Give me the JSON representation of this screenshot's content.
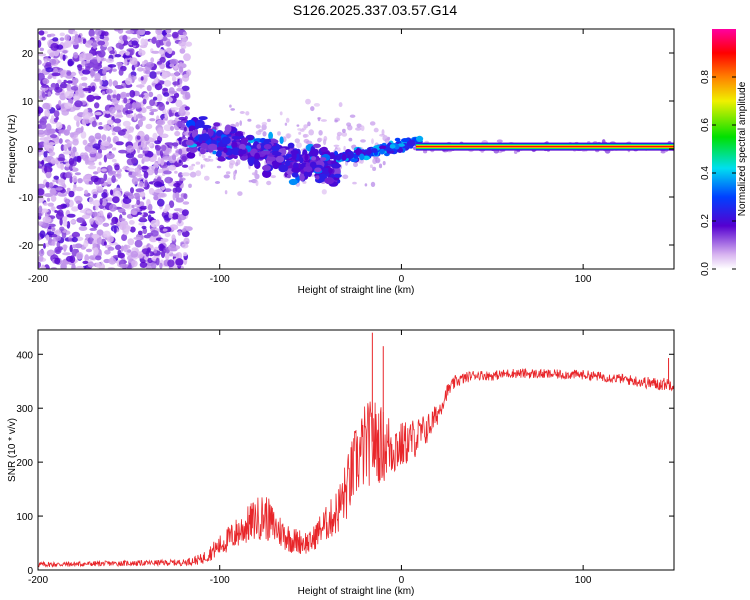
{
  "page": {
    "title": "S126.2025.337.03.57.G14"
  },
  "chart_data": [
    {
      "type": "heatmap",
      "xlabel": "Height of straight line (km)",
      "ylabel": "Frequency (Hz)",
      "xlim": [
        -200,
        150
      ],
      "ylim": [
        -25,
        25
      ],
      "xticks": [
        -200,
        -100,
        0,
        100
      ],
      "yticks": [
        -20,
        -10,
        0,
        10,
        20
      ],
      "colorbar": {
        "label": "Normalized spectral amplitude",
        "range": [
          0,
          1
        ],
        "ticks": [
          0.0,
          0.2,
          0.4,
          0.6,
          0.8
        ],
        "tick_labels": [
          "0.0",
          "0.2",
          "0.4",
          "0.6",
          "0.8"
        ]
      },
      "features": {
        "noise_region_km": [
          -200,
          -117
        ],
        "diffuse_cloud_km": [
          -117,
          -35
        ],
        "tone_line_start_km": 8,
        "tone_line_freq_hz": 0.5
      }
    },
    {
      "type": "line",
      "xlabel": "Height of straight line (km)",
      "ylabel": "SNR (10 * v/v)",
      "xlim": [
        -200,
        150
      ],
      "ylim": [
        0,
        445
      ],
      "xticks": [
        -200,
        -100,
        0,
        100
      ],
      "yticks": [
        0,
        100,
        200,
        300,
        400
      ],
      "color": "#e8262a",
      "series": [
        {
          "name": "SNR",
          "x": [
            -200,
            -180,
            -160,
            -140,
            -120,
            -110,
            -100,
            -90,
            -80,
            -75,
            -70,
            -60,
            -50,
            -45,
            -40,
            -35,
            -30,
            -25,
            -20,
            -15,
            -10,
            -5,
            0,
            5,
            10,
            15,
            20,
            25,
            30,
            40,
            50,
            60,
            80,
            100,
            120,
            140,
            150
          ],
          "y": [
            10,
            11,
            12,
            13,
            14,
            20,
            45,
            70,
            95,
            100,
            80,
            55,
            50,
            75,
            90,
            110,
            150,
            200,
            230,
            240,
            230,
            230,
            230,
            240,
            250,
            265,
            290,
            330,
            350,
            362,
            360,
            365,
            363,
            362,
            355,
            345,
            345
          ],
          "amplitude": [
            5,
            5,
            5,
            5,
            6,
            10,
            20,
            30,
            40,
            45,
            35,
            25,
            22,
            28,
            35,
            45,
            60,
            70,
            80,
            80,
            70,
            60,
            45,
            40,
            35,
            28,
            20,
            14,
            12,
            9,
            9,
            9,
            9,
            9,
            9,
            12,
            12
          ]
        }
      ],
      "peaks": [
        {
          "x": -16,
          "y": 440
        },
        {
          "x": -10,
          "y": 415
        },
        {
          "x": 147,
          "y": 393
        }
      ]
    }
  ]
}
